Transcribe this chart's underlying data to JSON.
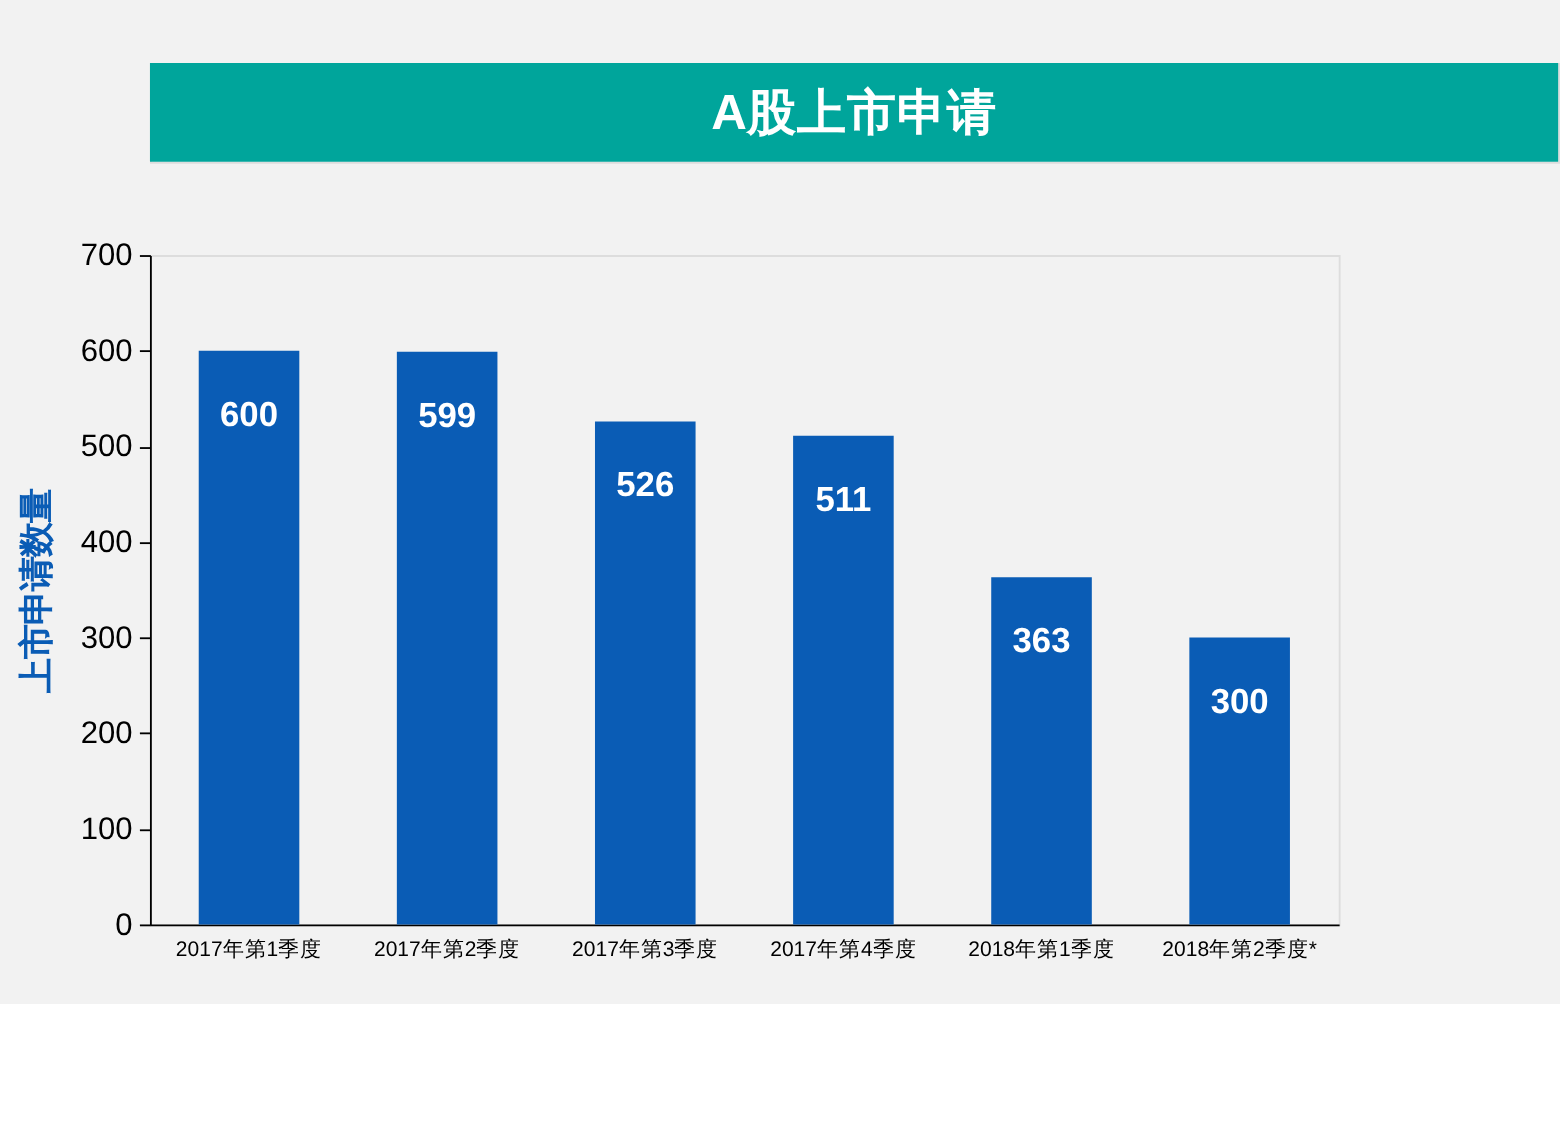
{
  "chart_data": {
    "type": "bar",
    "title": "A股上市申请",
    "ylabel": "上市申请数量",
    "categories": [
      "2017年第1季度",
      "2017年第2季度",
      "2017年第3季度",
      "2017年第4季度",
      "2018年第1季度",
      "2018年第2季度*"
    ],
    "values": [
      600,
      599,
      526,
      511,
      363,
      300
    ],
    "color": "#0a5cb5",
    "ylim": [
      0,
      700
    ],
    "yticks": [
      0,
      100,
      200,
      300,
      400,
      500,
      600,
      700
    ],
    "grid": false,
    "data_labels": true
  }
}
